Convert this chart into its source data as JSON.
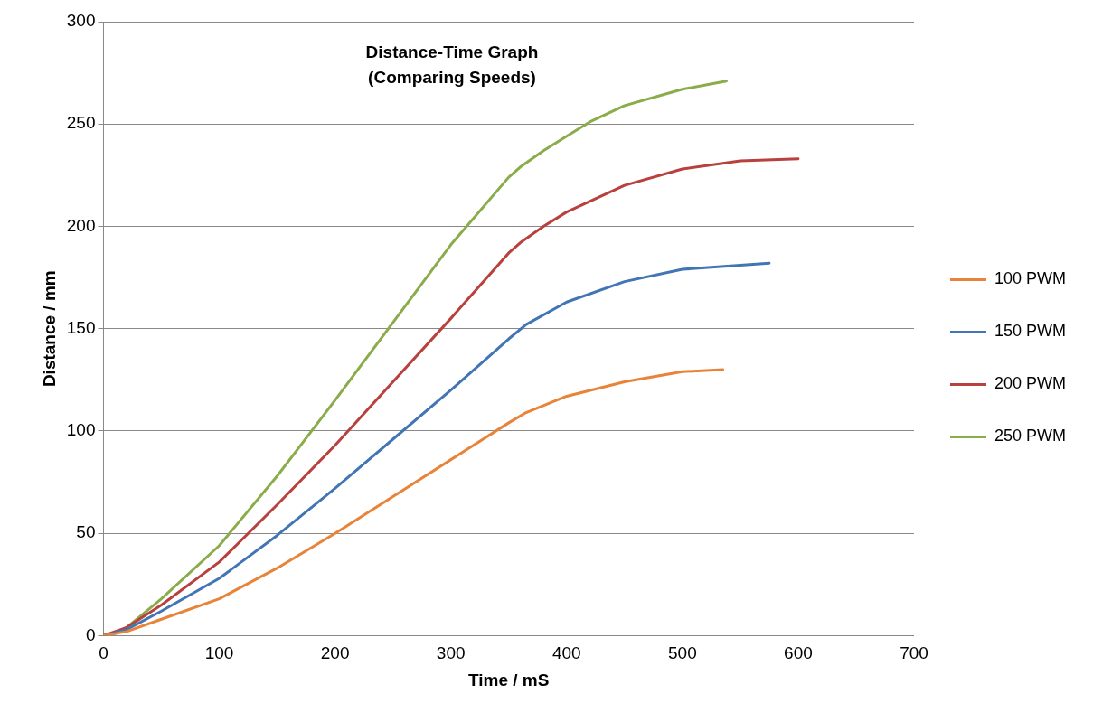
{
  "chart_data": {
    "type": "line",
    "title": "Distance-Time Graph\n(Comparing Speeds)",
    "xlabel": "Time / mS",
    "ylabel": "Distance / mm",
    "xlim": [
      0,
      700
    ],
    "xticks": [
      0,
      100,
      200,
      300,
      400,
      500,
      600,
      700
    ],
    "ylim": [
      0,
      300
    ],
    "yticks": [
      0,
      50,
      100,
      150,
      200,
      250,
      300
    ],
    "grid": "y",
    "legend": "right",
    "marker": "none",
    "line_style": "solid",
    "series": [
      {
        "name": "100 PWM",
        "color": "#e8843a",
        "x": [
          0,
          20,
          50,
          100,
          150,
          200,
          250,
          300,
          350,
          365,
          400,
          450,
          500,
          535
        ],
        "values": [
          0,
          2,
          8,
          18,
          33,
          50,
          68,
          86,
          104,
          109,
          117,
          124,
          129,
          130
        ]
      },
      {
        "name": "150 PWM",
        "color": "#4275b4",
        "x": [
          0,
          20,
          50,
          100,
          150,
          200,
          250,
          300,
          350,
          365,
          400,
          450,
          500,
          550,
          575
        ],
        "values": [
          0,
          3,
          12,
          28,
          49,
          72,
          96,
          120,
          145,
          152,
          163,
          173,
          179,
          181,
          182
        ]
      },
      {
        "name": "200 PWM",
        "color": "#b8413e",
        "x": [
          0,
          20,
          50,
          100,
          150,
          200,
          250,
          300,
          350,
          360,
          380,
          400,
          450,
          500,
          550,
          600
        ],
        "values": [
          0,
          4,
          15,
          36,
          64,
          93,
          124,
          155,
          187,
          192,
          200,
          207,
          220,
          228,
          232,
          233
        ]
      },
      {
        "name": "250 PWM",
        "color": "#8aac4a",
        "x": [
          0,
          10,
          20,
          50,
          100,
          150,
          200,
          250,
          300,
          350,
          360,
          380,
          400,
          420,
          450,
          500,
          538
        ],
        "values": [
          0,
          1,
          4,
          18,
          44,
          78,
          115,
          153,
          191,
          224,
          229,
          237,
          244,
          251,
          259,
          267,
          271
        ]
      }
    ]
  }
}
